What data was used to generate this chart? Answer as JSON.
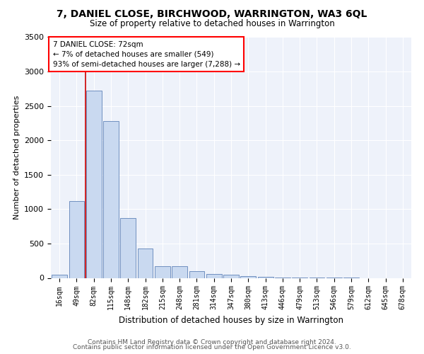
{
  "title": "7, DANIEL CLOSE, BIRCHWOOD, WARRINGTON, WA3 6QL",
  "subtitle": "Size of property relative to detached houses in Warrington",
  "xlabel": "Distribution of detached houses by size in Warrington",
  "ylabel": "Number of detached properties",
  "categories": [
    "16sqm",
    "49sqm",
    "82sqm",
    "115sqm",
    "148sqm",
    "182sqm",
    "215sqm",
    "248sqm",
    "281sqm",
    "314sqm",
    "347sqm",
    "380sqm",
    "413sqm",
    "446sqm",
    "479sqm",
    "513sqm",
    "546sqm",
    "579sqm",
    "612sqm",
    "645sqm",
    "678sqm"
  ],
  "values": [
    50,
    1120,
    2720,
    2280,
    870,
    430,
    175,
    165,
    95,
    60,
    50,
    30,
    20,
    10,
    5,
    3,
    2,
    1,
    0,
    0,
    0
  ],
  "bar_color": "#c9d9f0",
  "bar_edge_color": "#7090c0",
  "property_sqm": 72,
  "annotation_text": "7 DANIEL CLOSE: 72sqm\n← 7% of detached houses are smaller (549)\n93% of semi-detached houses are larger (7,288) →",
  "annotation_box_color": "white",
  "annotation_box_edge_color": "red",
  "ylim": [
    0,
    3500
  ],
  "yticks": [
    0,
    500,
    1000,
    1500,
    2000,
    2500,
    3000,
    3500
  ],
  "bg_color": "#eef2fa",
  "grid_color": "white",
  "footer_line1": "Contains HM Land Registry data © Crown copyright and database right 2024.",
  "footer_line2": "Contains public sector information licensed under the Open Government Licence v3.0."
}
